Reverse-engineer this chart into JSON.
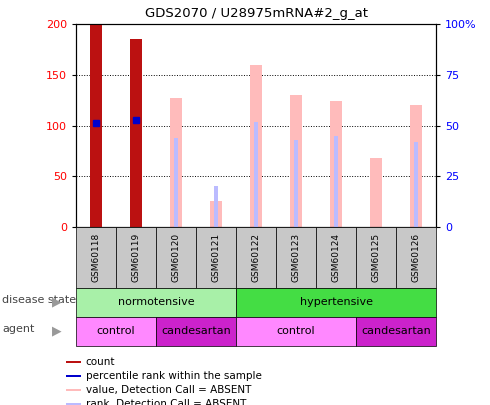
{
  "title": "GDS2070 / U28975mRNA#2_g_at",
  "samples": [
    "GSM60118",
    "GSM60119",
    "GSM60120",
    "GSM60121",
    "GSM60122",
    "GSM60123",
    "GSM60124",
    "GSM60125",
    "GSM60126"
  ],
  "count_values": [
    200,
    185,
    0,
    0,
    0,
    0,
    0,
    0,
    0
  ],
  "percentile_rank_values": [
    103,
    105,
    0,
    0,
    0,
    0,
    0,
    0,
    0
  ],
  "value_absent": [
    0,
    0,
    127,
    25,
    160,
    130,
    124,
    68,
    120
  ],
  "rank_absent_left": [
    0,
    0,
    88,
    40,
    104,
    86,
    90,
    0,
    84
  ],
  "disease_state": [
    {
      "label": "normotensive",
      "start": 0,
      "end": 4,
      "color": "#a8f0a8"
    },
    {
      "label": "hypertensive",
      "start": 4,
      "end": 9,
      "color": "#44dd44"
    }
  ],
  "agent": [
    {
      "label": "control",
      "start": 0,
      "end": 2,
      "color": "#ff88ff"
    },
    {
      "label": "candesartan",
      "start": 2,
      "end": 4,
      "color": "#cc22cc"
    },
    {
      "label": "control",
      "start": 4,
      "end": 7,
      "color": "#ff88ff"
    },
    {
      "label": "candesartan",
      "start": 7,
      "end": 9,
      "color": "#cc22cc"
    }
  ],
  "ylim_left": [
    0,
    200
  ],
  "count_color": "#bb1111",
  "percentile_color": "#0000cc",
  "value_absent_color": "#ffbbbb",
  "rank_absent_color": "#bbbbff",
  "tick_bg_color": "#c8c8c8",
  "right_yticks": [
    0,
    25,
    50,
    75,
    100
  ],
  "right_yticklabels": [
    "0",
    "25",
    "50",
    "75",
    "100%"
  ],
  "left_yticks": [
    0,
    50,
    100,
    150,
    200
  ],
  "left_yticklabels": [
    "0",
    "50",
    "100",
    "150",
    "200"
  ]
}
